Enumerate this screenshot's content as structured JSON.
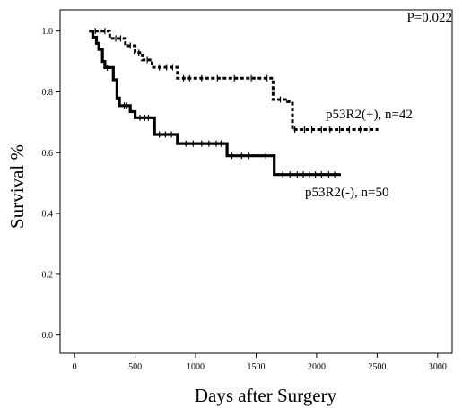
{
  "chart_data": {
    "type": "line",
    "title": "",
    "xlabel": "Days after Surgery",
    "ylabel": "Survival %",
    "xlim": [
      -120,
      3120
    ],
    "ylim": [
      -0.06,
      1.07
    ],
    "x_ticks": [
      0,
      500,
      1000,
      1500,
      2000,
      2500,
      3000
    ],
    "x_tick_labels": [
      "0",
      "500",
      "1000",
      "1500",
      "2000",
      "2500",
      "3000"
    ],
    "y_ticks": [
      0.0,
      0.2,
      0.4,
      0.6,
      0.8,
      1.0
    ],
    "y_tick_labels": [
      "0.0",
      "0.2",
      "0.4",
      "0.6",
      "0.8",
      "1.0"
    ],
    "grid": false,
    "annotation": "P=0.022",
    "series": [
      {
        "name": "p53R2(+), n=42",
        "line_style": "dashed",
        "step": true,
        "points": [
          [
            120,
            1.0
          ],
          [
            290,
            1.0
          ],
          [
            290,
            0.976
          ],
          [
            420,
            0.976
          ],
          [
            420,
            0.952
          ],
          [
            500,
            0.952
          ],
          [
            500,
            0.929
          ],
          [
            560,
            0.929
          ],
          [
            560,
            0.905
          ],
          [
            640,
            0.905
          ],
          [
            640,
            0.881
          ],
          [
            850,
            0.881
          ],
          [
            850,
            0.845
          ],
          [
            1640,
            0.845
          ],
          [
            1640,
            0.775
          ],
          [
            1760,
            0.775
          ],
          [
            1760,
            0.768
          ],
          [
            1800,
            0.768
          ],
          [
            1800,
            0.676
          ],
          [
            2510,
            0.676
          ]
        ],
        "censor_x": [
          170,
          210,
          250,
          340,
          380,
          460,
          530,
          600,
          700,
          760,
          810,
          900,
          950,
          1050,
          1180,
          1320,
          1460,
          1590,
          1700,
          1820,
          1900,
          1960,
          2040,
          2110,
          2190,
          2270,
          2360,
          2440
        ]
      },
      {
        "name": "p53R2(-), n=50",
        "line_style": "solid",
        "step": true,
        "points": [
          [
            120,
            1.0
          ],
          [
            150,
            1.0
          ],
          [
            150,
            0.98
          ],
          [
            180,
            0.98
          ],
          [
            180,
            0.96
          ],
          [
            200,
            0.96
          ],
          [
            200,
            0.94
          ],
          [
            230,
            0.94
          ],
          [
            230,
            0.9
          ],
          [
            250,
            0.9
          ],
          [
            250,
            0.88
          ],
          [
            320,
            0.88
          ],
          [
            320,
            0.84
          ],
          [
            350,
            0.84
          ],
          [
            350,
            0.78
          ],
          [
            370,
            0.78
          ],
          [
            370,
            0.755
          ],
          [
            460,
            0.755
          ],
          [
            460,
            0.735
          ],
          [
            500,
            0.735
          ],
          [
            500,
            0.715
          ],
          [
            660,
            0.715
          ],
          [
            660,
            0.66
          ],
          [
            850,
            0.66
          ],
          [
            850,
            0.63
          ],
          [
            1260,
            0.63
          ],
          [
            1260,
            0.59
          ],
          [
            1650,
            0.59
          ],
          [
            1650,
            0.528
          ],
          [
            2200,
            0.528
          ]
        ],
        "censor_x": [
          270,
          410,
          430,
          540,
          580,
          610,
          700,
          750,
          800,
          920,
          980,
          1050,
          1110,
          1170,
          1210,
          1300,
          1380,
          1440,
          1580,
          1720,
          1780,
          1840,
          1890,
          1940,
          1990,
          2040,
          2100,
          2150
        ]
      }
    ]
  }
}
